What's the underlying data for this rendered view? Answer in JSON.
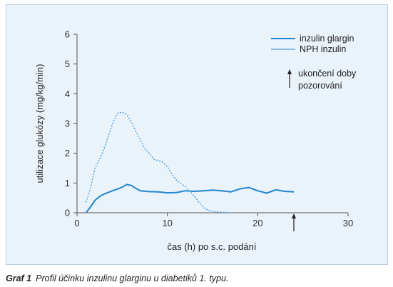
{
  "colors": {
    "panel_background": "#eaf2fa",
    "series_solid": "#1f86cf",
    "series_dotted": "#4aa3e0",
    "axis": "#555555",
    "marker": "#222222"
  },
  "chart_data": {
    "type": "line",
    "xlabel": "čas (h) po s.c. podání",
    "ylabel": "utilizace glukózy (mg/kg/min)",
    "xlim": [
      0,
      30
    ],
    "ylim": [
      0,
      6
    ],
    "x_ticks": [
      0,
      10,
      20,
      30
    ],
    "y_ticks": [
      0,
      1,
      2,
      3,
      4,
      5,
      6
    ],
    "grid": false,
    "legend_position": "top-right",
    "series": [
      {
        "name": "inzulin glargin",
        "style": "solid",
        "x": [
          1.0,
          1.5,
          2.0,
          2.5,
          3.0,
          3.5,
          4.0,
          4.5,
          5.0,
          5.5,
          6.0,
          6.5,
          7.0,
          8.0,
          9.0,
          10.0,
          11.0,
          12.0,
          13.0,
          14.0,
          15.0,
          16.0,
          17.0,
          18.0,
          19.0,
          20.0,
          21.0,
          22.0,
          23.0,
          24.0
        ],
        "y": [
          0.0,
          0.2,
          0.42,
          0.55,
          0.63,
          0.69,
          0.75,
          0.8,
          0.86,
          0.95,
          0.92,
          0.82,
          0.74,
          0.71,
          0.7,
          0.67,
          0.68,
          0.74,
          0.72,
          0.74,
          0.76,
          0.74,
          0.7,
          0.8,
          0.85,
          0.74,
          0.66,
          0.77,
          0.72,
          0.7
        ]
      },
      {
        "name": "NPH inzulin",
        "style": "dotted",
        "x": [
          1.0,
          1.5,
          2.0,
          2.5,
          3.0,
          3.5,
          4.0,
          4.5,
          5.0,
          5.5,
          6.0,
          6.5,
          7.0,
          7.5,
          8.0,
          8.5,
          9.0,
          9.5,
          10.0,
          10.5,
          11.0,
          11.5,
          12.0,
          12.5,
          13.0,
          13.5,
          14.0,
          14.5,
          15.0,
          15.5,
          16.0,
          16.5,
          17.0
        ],
        "y": [
          0.35,
          0.85,
          1.5,
          1.8,
          2.15,
          2.6,
          3.05,
          3.35,
          3.38,
          3.3,
          3.05,
          2.75,
          2.45,
          2.15,
          2.0,
          1.8,
          1.75,
          1.7,
          1.55,
          1.3,
          1.1,
          0.98,
          0.88,
          0.72,
          0.55,
          0.35,
          0.18,
          0.08,
          0.05,
          0.03,
          0.02,
          0.01,
          0.0
        ]
      }
    ],
    "annotation": {
      "text_line1": "ukončení doby",
      "text_line2": "pozorování",
      "marker_x": 24
    }
  },
  "caption": {
    "label": "Graf 1",
    "text": "Profil účinku inzulinu glarginu u diabetiků 1. typu."
  }
}
